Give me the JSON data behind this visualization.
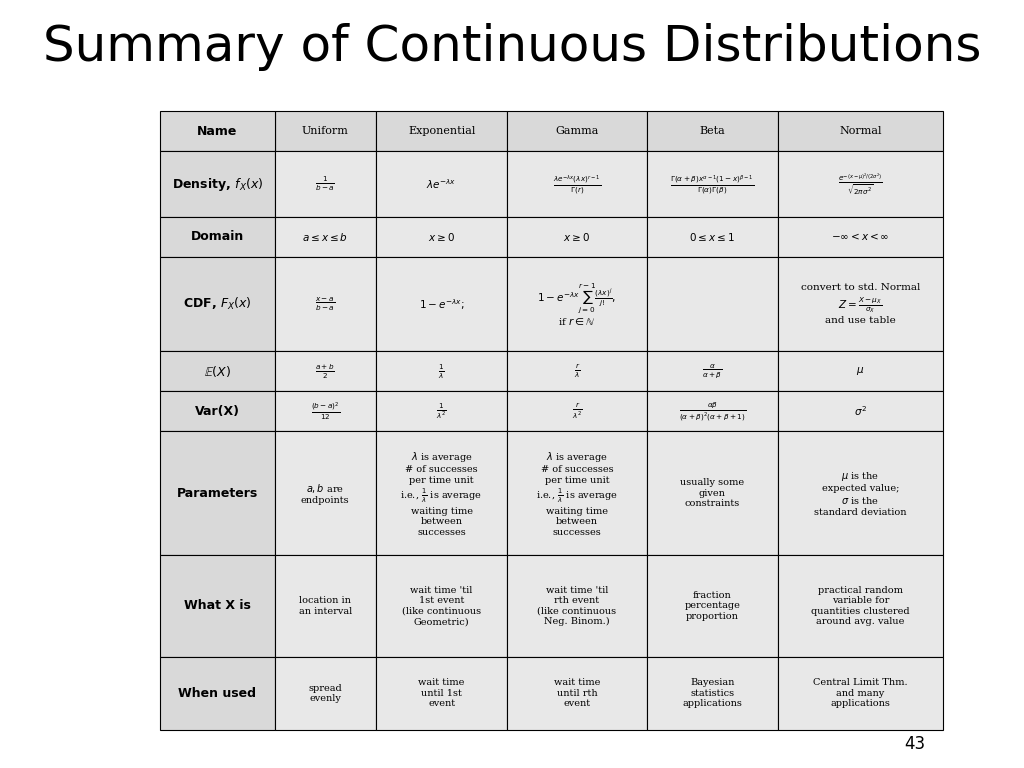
{
  "title": "Summary of Continuous Distributions",
  "title_fontsize": 36,
  "page_number": "43",
  "bg_color": "#ffffff",
  "header_bg": "#d9d9d9",
  "row_label_bg": "#d9d9d9",
  "cell_bg": "#e8e8e8",
  "col_headers": [
    "Uniform",
    "Exponential",
    "Gamma",
    "Beta",
    "Normal"
  ],
  "row_labels": [
    "Name",
    "Density, $f_X(x)$",
    "Domain",
    "CDF, $F_X(x)$",
    "$\\mathbb{E}(X)$",
    "Var(X)",
    "Parameters",
    "What X is",
    "When used"
  ],
  "table_data": {
    "Name": [
      "Uniform",
      "Exponential",
      "Gamma",
      "Beta",
      "Normal"
    ],
    "Density": [
      "$\\frac{1}{b-a}$",
      "$\\lambda e^{-\\lambda x}$",
      "$\\frac{\\lambda e^{-\\lambda x}(\\lambda x)^{r-1}}{\\Gamma(r)}$",
      "$\\frac{\\Gamma(\\alpha+\\beta)x^{\\alpha-1}(1-x)^{\\beta-1}}{\\Gamma(\\alpha)\\Gamma(\\beta)}$",
      "$\\frac{e^{-(x-\\mu)^2/(2\\sigma^2)}}{\\sqrt{2\\pi\\sigma^2}}$"
    ],
    "Domain": [
      "$a \\leq x \\leq b$",
      "$x \\geq 0$",
      "$x \\geq 0$",
      "$0 \\leq x \\leq 1$",
      "$-\\infty < x < \\infty$"
    ],
    "CDF": [
      "$\\frac{x-a}{b-a}$",
      "$1 - e^{-\\lambda x};$",
      "$1 - e^{-\\lambda x}\\sum_{j=0}^{r-1}\\frac{(\\lambda x)^j}{j!},$\nif $r \\in \\mathbb{N}$",
      "",
      "convert to std. Normal\n$Z = \\frac{X-\\mu_X}{\\sigma_X}$\nand use table"
    ],
    "EX": [
      "$\\frac{a+b}{2}$",
      "$\\frac{1}{\\lambda}$",
      "$\\frac{r}{\\lambda}$",
      "$\\frac{\\alpha}{\\alpha+\\beta}$",
      "$\\mu$"
    ],
    "VarX": [
      "$\\frac{(b-a)^2}{12}$",
      "$\\frac{1}{\\lambda^2}$",
      "$\\frac{r}{\\lambda^2}$",
      "$\\frac{\\alpha\\beta}{(\\alpha+\\beta)^2(\\alpha+\\beta+1)}$",
      "$\\sigma^2$"
    ],
    "Parameters": [
      "$a, b$ are\nendpoints",
      "$\\lambda$ is average\n# of successes\nper time unit\ni.e., $\\frac{1}{\\lambda}$ is average\nwaiting time\nbetween\nsuccesses",
      "$\\lambda$ is average\n# of successes\nper time unit\ni.e., $\\frac{1}{\\lambda}$ is average\nwaiting time\nbetween\nsuccesses",
      "usually some\ngiven\nconstraints",
      "$\\mu$ is the\nexpected value;\n$\\sigma$ is the\nstandard deviation"
    ],
    "WhatX": [
      "location in\nan interval",
      "wait time 'til\n1st event\n(like continuous\nGeometric)",
      "wait time 'til\nrth event\n(like continuous\nNeg. Binom.)",
      "fraction\npercentage\nproportion",
      "practical random\nvariable for\nquantities clustered\naround avg. value"
    ],
    "WhenUsed": [
      "spread\nevenly",
      "wait time\nuntil 1st\nevent",
      "wait time\nuntil rth\nevent",
      "Bayesian\nstatistics\napplications",
      "Central Limit Thm.\nand many\napplications"
    ]
  }
}
